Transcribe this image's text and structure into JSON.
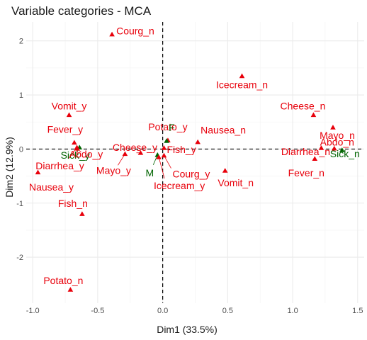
{
  "chart_data": {
    "type": "scatter",
    "title": "Variable categories - MCA",
    "xlabel": "Dim1 (33.5%)",
    "ylabel": "Dim2 (12.9%)",
    "xlim": [
      -1.05,
      1.55
    ],
    "ylim": [
      -2.85,
      2.35
    ],
    "x_ticks": [
      -1.0,
      -0.5,
      0.0,
      0.5,
      1.0,
      1.5
    ],
    "x_tick_labels": [
      "-1.0",
      "-0.5",
      "0.0",
      "0.5",
      "1.0",
      "1.5"
    ],
    "y_ticks": [
      -2,
      -1,
      0,
      1,
      2
    ],
    "y_tick_labels": [
      "-2",
      "-1",
      "0",
      "1",
      "2"
    ],
    "grid": true,
    "reference_lines": [
      {
        "axis": "x",
        "value": 0,
        "style": "dashed"
      },
      {
        "axis": "y",
        "value": 0,
        "style": "dashed"
      }
    ],
    "colors": {
      "red": "#e8000b",
      "green": "#006400",
      "grid_major": "#ebebeb",
      "grid_minor": "#f5f5f5"
    },
    "points": [
      {
        "label": "Courg_n",
        "x": -0.39,
        "y": 2.12,
        "color": "red"
      },
      {
        "label": "Icecream_n",
        "x": 0.61,
        "y": 1.35,
        "color": "red"
      },
      {
        "label": "Vomit_y",
        "x": -0.72,
        "y": 0.63,
        "color": "red"
      },
      {
        "label": "Cheese_n",
        "x": 1.16,
        "y": 0.63,
        "color": "red"
      },
      {
        "label": "Mayo_n",
        "x": 1.31,
        "y": 0.4,
        "color": "red"
      },
      {
        "label": "Abdo_n",
        "x": 1.32,
        "y": 0.01,
        "color": "red"
      },
      {
        "label": "Fever_y",
        "x": -0.68,
        "y": 0.12,
        "color": "red"
      },
      {
        "label": "Potato_y",
        "x": 0.04,
        "y": 0.16,
        "color": "red"
      },
      {
        "label": "Nausea_n",
        "x": 0.27,
        "y": 0.13,
        "color": "red"
      },
      {
        "label": "F",
        "x": 0.03,
        "y": 0.15,
        "color": "green"
      },
      {
        "label": "Cheese_y",
        "x": -0.17,
        "y": -0.07,
        "color": "red"
      },
      {
        "label": "Fish_y",
        "x": 0.01,
        "y": 0.02,
        "color": "red"
      },
      {
        "label": "Sick_y",
        "x": -0.64,
        "y": 0.03,
        "color": "green"
      },
      {
        "label": "Abdo_y",
        "x": -0.66,
        "y": 0.01,
        "color": "red"
      },
      {
        "label": "Diarrhea_y",
        "x": -0.66,
        "y": 0.03,
        "color": "red"
      },
      {
        "label": "Diarrhea_n",
        "x": 1.22,
        "y": 0.02,
        "color": "red"
      },
      {
        "label": "Sick_n",
        "x": 1.38,
        "y": -0.02,
        "color": "green"
      },
      {
        "label": "M",
        "x": -0.04,
        "y": -0.11,
        "color": "green"
      },
      {
        "label": "Mayo_y",
        "x": -0.29,
        "y": -0.09,
        "color": "red"
      },
      {
        "label": "Courg_y",
        "x": 0.01,
        "y": -0.12,
        "color": "red"
      },
      {
        "label": "Icecream_y",
        "x": -0.03,
        "y": -0.15,
        "color": "red"
      },
      {
        "label": "Fever_n",
        "x": 1.17,
        "y": -0.18,
        "color": "red"
      },
      {
        "label": "Nausea_y",
        "x": -0.96,
        "y": -0.43,
        "color": "red"
      },
      {
        "label": "Vomit_n",
        "x": 0.48,
        "y": -0.4,
        "color": "red"
      },
      {
        "label": "Fish_n",
        "x": -0.62,
        "y": -1.2,
        "color": "red"
      },
      {
        "label": "Potato_n",
        "x": -0.71,
        "y": -2.6,
        "color": "red"
      }
    ]
  }
}
